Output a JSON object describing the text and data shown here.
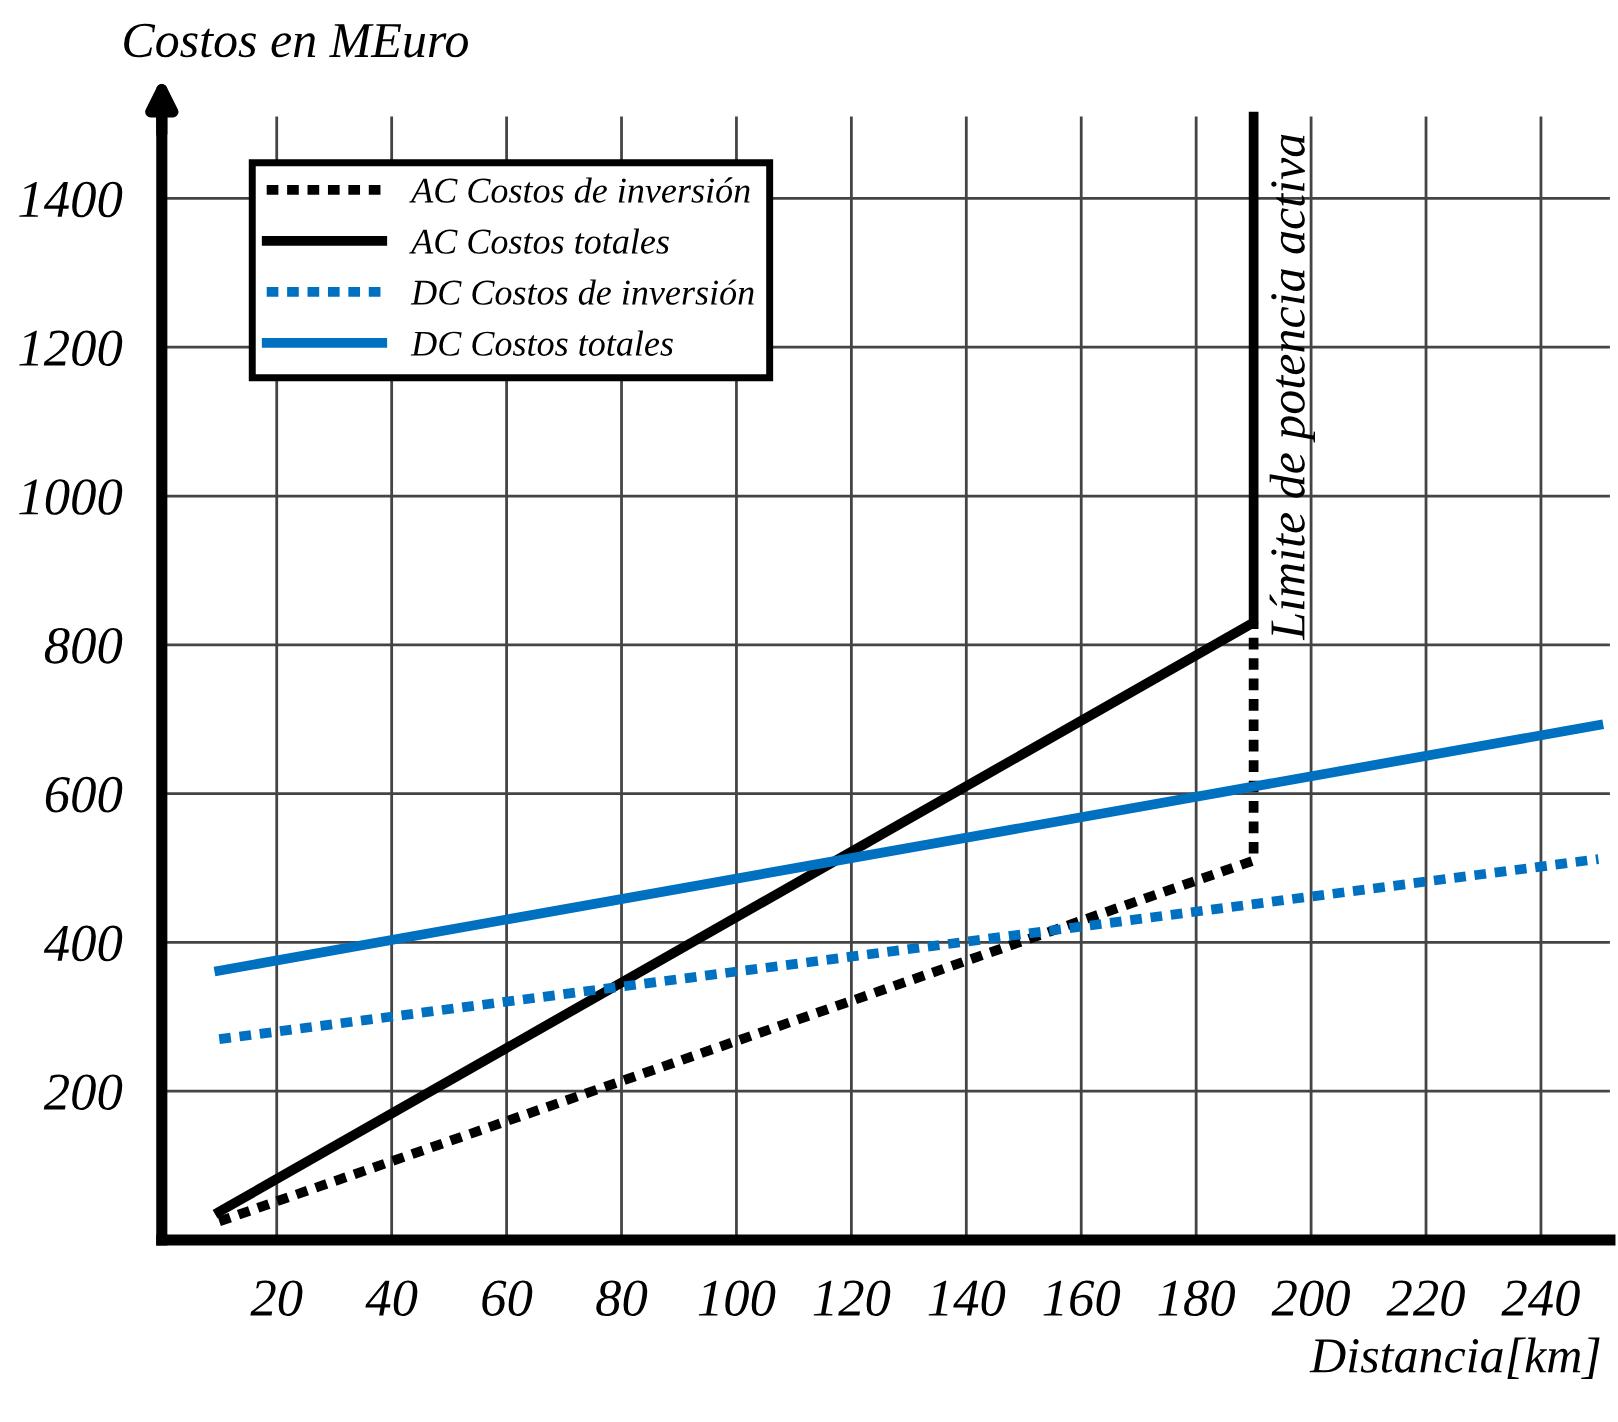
{
  "chart_data": {
    "type": "line",
    "ylabel": "Costos en MEuro",
    "xlabel": "Distancia[km]",
    "series": [
      {
        "name": "AC Costos de inversión",
        "color": "#000000",
        "line_style": "dashed",
        "x": [
          10,
          190,
          190
        ],
        "values": [
          25,
          510,
          830
        ]
      },
      {
        "name": "AC Costos totales",
        "color": "#000000",
        "line_style": "solid",
        "x": [
          10,
          190,
          190
        ],
        "values": [
          38,
          830,
          1510
        ]
      },
      {
        "name": "DC Costos de inversión",
        "color": "#0070c0",
        "line_style": "dashed",
        "x": [
          10,
          250
        ],
        "values": [
          270,
          512
        ]
      },
      {
        "name": "DC Costos totales",
        "color": "#0070c0",
        "line_style": "solid",
        "x": [
          10,
          250
        ],
        "values": [
          362,
          692
        ]
      }
    ],
    "annotations": [
      "Límite de potencia activa"
    ],
    "xlim": [
      0,
      252
    ],
    "ylim": [
      0,
      1510
    ],
    "xticks": [
      20,
      40,
      60,
      80,
      100,
      120,
      140,
      160,
      180,
      200,
      220,
      240
    ],
    "yticks": [
      {
        "value": 0,
        "label": null
      },
      200,
      400,
      600,
      800,
      1000,
      1200,
      1400
    ],
    "grid": true,
    "legend": "top left",
    "marker": "none"
  }
}
